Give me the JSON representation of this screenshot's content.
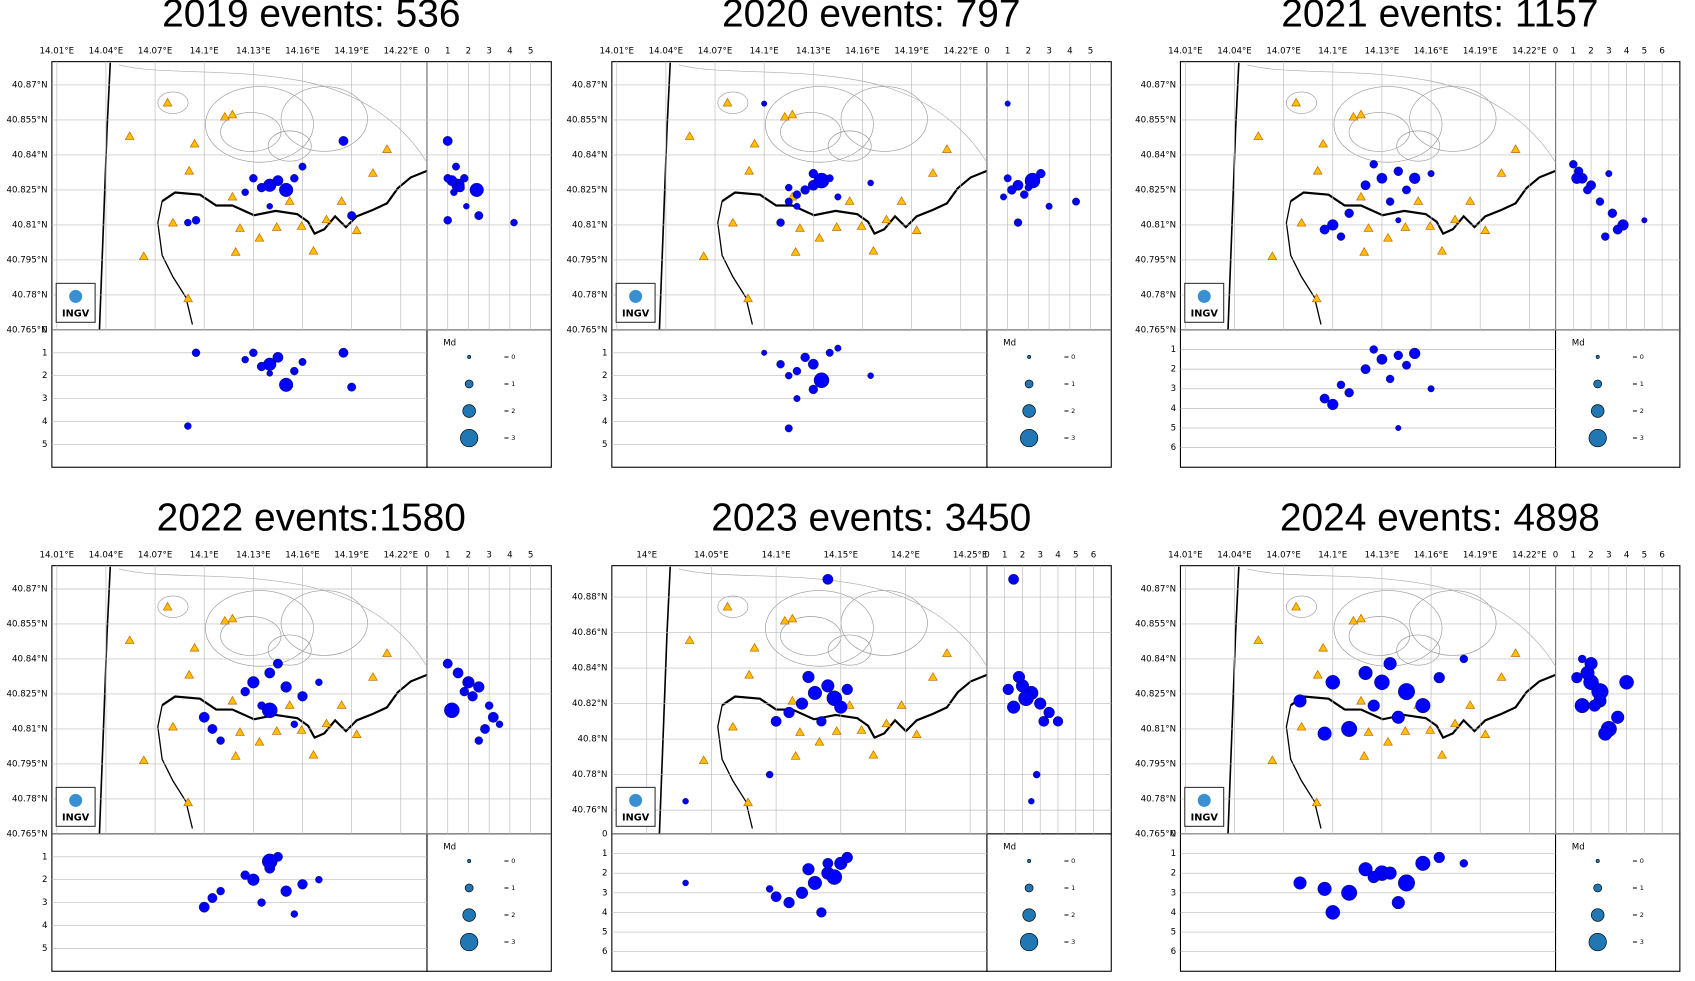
{
  "chart_data": [
    {
      "type": "scatter",
      "title": "2019 events: 536",
      "logo": "INGV",
      "map": {
        "xlim": [
          14.007,
          14.236
        ],
        "ylim": [
          40.765,
          40.88
        ],
        "xticks": [
          {
            "value": 14.01,
            "label": "14.01°E"
          },
          {
            "value": 14.04,
            "label": "14.04°E"
          },
          {
            "value": 14.07,
            "label": "14.07°E"
          },
          {
            "value": 14.1,
            "label": "14.1°E"
          },
          {
            "value": 14.13,
            "label": "14.13°E"
          },
          {
            "value": 14.16,
            "label": "14.16°E"
          },
          {
            "value": 14.19,
            "label": "14.19°E"
          },
          {
            "value": 14.22,
            "label": "14.22°E"
          }
        ],
        "yticks": [
          {
            "value": 40.765,
            "label": "40.765°N"
          },
          {
            "value": 40.78,
            "label": "40.78°N"
          },
          {
            "value": 40.795,
            "label": "40.795°N"
          },
          {
            "value": 40.81,
            "label": "40.81°N"
          },
          {
            "value": 40.825,
            "label": "40.825°N"
          },
          {
            "value": 40.84,
            "label": "40.84°N"
          },
          {
            "value": 40.855,
            "label": "40.855°N"
          },
          {
            "value": 40.87,
            "label": "40.87°N"
          }
        ]
      },
      "side": {
        "xlim": [
          0,
          6
        ],
        "xticks": [
          0,
          1,
          2,
          3,
          4,
          5
        ]
      },
      "depth": {
        "ylim": [
          0,
          6
        ],
        "yticks": [
          0,
          1,
          2,
          3,
          4,
          5
        ]
      },
      "legend": {
        "title": "Md",
        "color": "#1f77b4",
        "sizes": [
          0,
          1,
          2,
          3
        ],
        "labels": [
          "= 0",
          "= 1",
          "= 2",
          "= 3"
        ]
      },
      "events": {
        "color": "#0000ff",
        "lon": [
          14.14,
          14.145,
          14.135,
          14.15,
          14.13,
          14.125,
          14.155,
          14.185,
          14.095,
          14.09,
          14.19,
          14.14,
          14.16
        ],
        "lat": [
          40.827,
          40.829,
          40.826,
          40.825,
          40.83,
          40.824,
          40.83,
          40.846,
          40.812,
          40.811,
          40.814,
          40.818,
          40.835
        ],
        "depth": [
          1.5,
          1.2,
          1.6,
          2.4,
          1.0,
          1.3,
          1.8,
          1.0,
          1.0,
          4.2,
          2.5,
          1.9,
          1.4
        ],
        "md": [
          2.0,
          1.5,
          1.2,
          2.2,
          1.0,
          0.8,
          1.0,
          1.3,
          1.0,
          0.8,
          1.1,
          0.6,
          0.9
        ]
      }
    },
    {
      "type": "scatter",
      "title": "2020 events: 797",
      "logo": "INGV",
      "map": {
        "xlim": [
          14.007,
          14.236
        ],
        "ylim": [
          40.765,
          40.88
        ],
        "xticks": [
          {
            "value": 14.01,
            "label": "14.01°E"
          },
          {
            "value": 14.04,
            "label": "14.04°E"
          },
          {
            "value": 14.07,
            "label": "14.07°E"
          },
          {
            "value": 14.1,
            "label": "14.1°E"
          },
          {
            "value": 14.13,
            "label": "14.13°E"
          },
          {
            "value": 14.16,
            "label": "14.16°E"
          },
          {
            "value": 14.19,
            "label": "14.19°E"
          },
          {
            "value": 14.22,
            "label": "14.22°E"
          }
        ],
        "yticks": [
          {
            "value": 40.765,
            "label": "40.765°N"
          },
          {
            "value": 40.78,
            "label": "40.78°N"
          },
          {
            "value": 40.795,
            "label": "40.795°N"
          },
          {
            "value": 40.81,
            "label": "40.81°N"
          },
          {
            "value": 40.825,
            "label": "40.825°N"
          },
          {
            "value": 40.84,
            "label": "40.84°N"
          },
          {
            "value": 40.855,
            "label": "40.855°N"
          },
          {
            "value": 40.87,
            "label": "40.87°N"
          }
        ]
      },
      "side": {
        "xlim": [
          0,
          6
        ],
        "xticks": [
          0,
          1,
          2,
          3,
          4,
          5
        ]
      },
      "depth": {
        "ylim": [
          0,
          6
        ],
        "yticks": [
          1,
          2,
          3,
          4,
          5
        ]
      },
      "legend": {
        "title": "Md",
        "color": "#1f77b4",
        "sizes": [
          0,
          1,
          2,
          3
        ],
        "labels": [
          "= 0",
          "= 1",
          "= 2",
          "= 3"
        ]
      },
      "events": {
        "color": "#0000ff",
        "lon": [
          14.13,
          14.135,
          14.125,
          14.12,
          14.14,
          14.115,
          14.11,
          14.13,
          14.145,
          14.115,
          14.12,
          14.165,
          14.1
        ],
        "lat": [
          40.827,
          40.829,
          40.825,
          40.823,
          40.83,
          40.826,
          40.811,
          40.832,
          40.822,
          40.82,
          40.818,
          40.828,
          40.862
        ],
        "depth": [
          1.5,
          2.2,
          1.2,
          1.8,
          1.0,
          2.0,
          1.5,
          2.6,
          0.8,
          4.3,
          3.0,
          2.0,
          1.0
        ],
        "md": [
          1.5,
          2.5,
          1.2,
          1.0,
          0.9,
          0.8,
          1.0,
          1.2,
          0.7,
          0.9,
          0.7,
          0.6,
          0.5
        ]
      }
    },
    {
      "type": "scatter",
      "title": "2021 events: 1157",
      "logo": "INGV",
      "map": {
        "xlim": [
          14.007,
          14.236
        ],
        "ylim": [
          40.765,
          40.88
        ],
        "xticks": [
          {
            "value": 14.01,
            "label": "14.01°E"
          },
          {
            "value": 14.04,
            "label": "14.04°E"
          },
          {
            "value": 14.07,
            "label": "14.07°E"
          },
          {
            "value": 14.1,
            "label": "14.1°E"
          },
          {
            "value": 14.13,
            "label": "14.13°E"
          },
          {
            "value": 14.16,
            "label": "14.16°E"
          },
          {
            "value": 14.19,
            "label": "14.19°E"
          },
          {
            "value": 14.22,
            "label": "14.22°E"
          }
        ],
        "yticks": [
          {
            "value": 40.765,
            "label": "40.765°N"
          },
          {
            "value": 40.78,
            "label": "40.78°N"
          },
          {
            "value": 40.795,
            "label": "40.795°N"
          },
          {
            "value": 40.81,
            "label": "40.81°N"
          },
          {
            "value": 40.825,
            "label": "40.825°N"
          },
          {
            "value": 40.84,
            "label": "40.84°N"
          },
          {
            "value": 40.855,
            "label": "40.855°N"
          },
          {
            "value": 40.87,
            "label": "40.87°N"
          }
        ]
      },
      "side": {
        "xlim": [
          0,
          7
        ],
        "xticks": [
          0,
          1,
          2,
          3,
          4,
          5,
          6
        ]
      },
      "depth": {
        "ylim": [
          0,
          7
        ],
        "yticks": [
          1,
          2,
          3,
          4,
          5,
          6
        ]
      },
      "legend": {
        "title": "Md",
        "color": "#1f77b4",
        "sizes": [
          0,
          1,
          2,
          3
        ],
        "labels": [
          "= 0",
          "= 1",
          "= 2",
          "= 3"
        ]
      },
      "events": {
        "color": "#0000ff",
        "lon": [
          14.13,
          14.14,
          14.12,
          14.125,
          14.145,
          14.135,
          14.15,
          14.1,
          14.095,
          14.105,
          14.11,
          14.16,
          14.14
        ],
        "lat": [
          40.83,
          40.833,
          40.827,
          40.836,
          40.825,
          40.82,
          40.83,
          40.81,
          40.808,
          40.805,
          40.815,
          40.832,
          40.812
        ],
        "depth": [
          1.5,
          1.3,
          2.0,
          1.0,
          1.8,
          2.5,
          1.2,
          3.8,
          3.5,
          2.8,
          3.2,
          3.0,
          5.0
        ],
        "md": [
          1.5,
          1.2,
          1.3,
          1.0,
          1.1,
          1.0,
          1.6,
          1.6,
          1.3,
          1.0,
          1.2,
          0.7,
          0.5
        ]
      }
    },
    {
      "type": "scatter",
      "title": "2022 events:1580",
      "logo": "INGV",
      "map": {
        "xlim": [
          14.007,
          14.236
        ],
        "ylim": [
          40.765,
          40.88
        ],
        "xticks": [
          {
            "value": 14.01,
            "label": "14.01°E"
          },
          {
            "value": 14.04,
            "label": "14.04°E"
          },
          {
            "value": 14.07,
            "label": "14.07°E"
          },
          {
            "value": 14.1,
            "label": "14.1°E"
          },
          {
            "value": 14.13,
            "label": "14.13°E"
          },
          {
            "value": 14.16,
            "label": "14.16°E"
          },
          {
            "value": 14.19,
            "label": "14.19°E"
          },
          {
            "value": 14.22,
            "label": "14.22°E"
          }
        ],
        "yticks": [
          {
            "value": 40.765,
            "label": "40.765°N"
          },
          {
            "value": 40.78,
            "label": "40.78°N"
          },
          {
            "value": 40.795,
            "label": "40.795°N"
          },
          {
            "value": 40.81,
            "label": "40.81°N"
          },
          {
            "value": 40.825,
            "label": "40.825°N"
          },
          {
            "value": 40.84,
            "label": "40.84°N"
          },
          {
            "value": 40.855,
            "label": "40.855°N"
          },
          {
            "value": 40.87,
            "label": "40.87°N"
          }
        ]
      },
      "side": {
        "xlim": [
          0,
          6
        ],
        "xticks": [
          0,
          1,
          2,
          3,
          4,
          5
        ]
      },
      "depth": {
        "ylim": [
          0,
          6
        ],
        "yticks": [
          1,
          2,
          3,
          4,
          5
        ]
      },
      "legend": {
        "title": "Md",
        "color": "#1f77b4",
        "sizes": [
          0,
          1,
          2,
          3
        ],
        "labels": [
          "= 0",
          "= 1",
          "= 2",
          "= 3"
        ]
      },
      "events": {
        "color": "#0000ff",
        "lon": [
          14.13,
          14.14,
          14.15,
          14.125,
          14.145,
          14.16,
          14.135,
          14.1,
          14.105,
          14.11,
          14.14,
          14.17,
          14.155
        ],
        "lat": [
          40.83,
          40.834,
          40.828,
          40.826,
          40.838,
          40.824,
          40.82,
          40.815,
          40.81,
          40.805,
          40.818,
          40.83,
          40.812
        ],
        "depth": [
          2.0,
          1.5,
          2.5,
          1.8,
          1.0,
          2.2,
          3.0,
          3.2,
          2.8,
          2.5,
          1.2,
          2.0,
          3.5
        ],
        "md": [
          1.8,
          1.5,
          1.6,
          1.2,
          1.3,
          1.4,
          1.0,
          1.5,
          1.3,
          1.0,
          2.5,
          0.8,
          0.8
        ]
      }
    },
    {
      "type": "scatter",
      "title": "2023 events: 3450",
      "logo": "INGV",
      "map": {
        "xlim": [
          13.973,
          14.263
        ],
        "ylim": [
          40.7466,
          40.8977
        ],
        "xticks": [
          {
            "value": 14,
            "label": "14°E"
          },
          {
            "value": 14.05,
            "label": "14.05°E"
          },
          {
            "value": 14.1,
            "label": "14.1°E"
          },
          {
            "value": 14.15,
            "label": "14.15°E"
          },
          {
            "value": 14.2,
            "label": "14.2°E"
          },
          {
            "value": 14.25,
            "label": "14.25°E"
          }
        ],
        "yticks": [
          {
            "value": 40.76,
            "label": "40.76°N"
          },
          {
            "value": 40.78,
            "label": "40.78°N"
          },
          {
            "value": 40.8,
            "label": "40.8°N"
          },
          {
            "value": 40.82,
            "label": "40.82°N"
          },
          {
            "value": 40.84,
            "label": "40.84°N"
          },
          {
            "value": 40.86,
            "label": "40.86°N"
          },
          {
            "value": 40.88,
            "label": "40.88°N"
          }
        ]
      },
      "side": {
        "xlim": [
          0,
          7
        ],
        "xticks": [
          0,
          1,
          2,
          3,
          4,
          5,
          6
        ]
      },
      "depth": {
        "ylim": [
          0,
          7
        ],
        "yticks": [
          0,
          1,
          2,
          3,
          4,
          5,
          6
        ]
      },
      "legend": {
        "title": "Md",
        "color": "#1f77b4",
        "sizes": [
          0,
          1,
          2,
          3
        ],
        "labels": [
          "= 0",
          "= 1",
          "= 2",
          "= 3"
        ]
      },
      "events": {
        "color": "#0000ff",
        "lon": [
          14.13,
          14.14,
          14.12,
          14.145,
          14.15,
          14.11,
          14.125,
          14.1,
          14.135,
          14.155,
          14.14,
          14.095,
          14.03
        ],
        "lat": [
          40.826,
          40.83,
          40.82,
          40.823,
          40.818,
          40.815,
          40.835,
          40.81,
          40.81,
          40.828,
          40.89,
          40.78,
          40.765
        ],
        "depth": [
          2.5,
          2.0,
          3.0,
          2.2,
          1.5,
          3.5,
          1.8,
          3.2,
          4.0,
          1.2,
          1.5,
          2.8,
          2.5
        ],
        "md": [
          2.2,
          2.0,
          1.8,
          2.5,
          2.0,
          1.6,
          1.8,
          1.5,
          1.4,
          1.6,
          1.5,
          0.8,
          0.6
        ]
      }
    },
    {
      "type": "scatter",
      "title": "2024 events: 4898",
      "logo": "INGV",
      "map": {
        "xlim": [
          14.007,
          14.236
        ],
        "ylim": [
          40.765,
          40.88
        ],
        "xticks": [
          {
            "value": 14.01,
            "label": "14.01°E"
          },
          {
            "value": 14.04,
            "label": "14.04°E"
          },
          {
            "value": 14.07,
            "label": "14.07°E"
          },
          {
            "value": 14.1,
            "label": "14.1°E"
          },
          {
            "value": 14.13,
            "label": "14.13°E"
          },
          {
            "value": 14.16,
            "label": "14.16°E"
          },
          {
            "value": 14.19,
            "label": "14.19°E"
          },
          {
            "value": 14.22,
            "label": "14.22°E"
          }
        ],
        "yticks": [
          {
            "value": 40.765,
            "label": "40.765°N"
          },
          {
            "value": 40.78,
            "label": "40.78°N"
          },
          {
            "value": 40.795,
            "label": "40.795°N"
          },
          {
            "value": 40.81,
            "label": "40.81°N"
          },
          {
            "value": 40.825,
            "label": "40.825°N"
          },
          {
            "value": 40.84,
            "label": "40.84°N"
          },
          {
            "value": 40.855,
            "label": "40.855°N"
          },
          {
            "value": 40.87,
            "label": "40.87°N"
          }
        ]
      },
      "side": {
        "xlim": [
          0,
          7
        ],
        "xticks": [
          0,
          1,
          2,
          3,
          4,
          5,
          6
        ]
      },
      "depth": {
        "ylim": [
          0,
          7
        ],
        "yticks": [
          0,
          1,
          2,
          3,
          4,
          5,
          6
        ]
      },
      "legend": {
        "title": "Md",
        "color": "#1f77b4",
        "sizes": [
          0,
          1,
          2,
          3
        ],
        "labels": [
          "= 0",
          "= 1",
          "= 2",
          "= 3"
        ]
      },
      "events": {
        "color": "#0000ff",
        "lon": [
          14.13,
          14.145,
          14.12,
          14.155,
          14.11,
          14.095,
          14.08,
          14.14,
          14.125,
          14.165,
          14.135,
          14.1,
          14.18
        ],
        "lat": [
          40.83,
          40.826,
          40.834,
          40.82,
          40.81,
          40.808,
          40.822,
          40.815,
          40.82,
          40.832,
          40.838,
          40.83,
          40.84
        ],
        "depth": [
          2.0,
          2.5,
          1.8,
          1.5,
          3.0,
          2.8,
          2.5,
          3.5,
          2.2,
          1.2,
          2.0,
          4.0,
          1.5
        ],
        "md": [
          2.5,
          2.8,
          2.2,
          2.4,
          2.6,
          2.2,
          2.0,
          2.0,
          1.8,
          1.6,
          2.0,
          2.3,
          1.0
        ]
      }
    }
  ]
}
